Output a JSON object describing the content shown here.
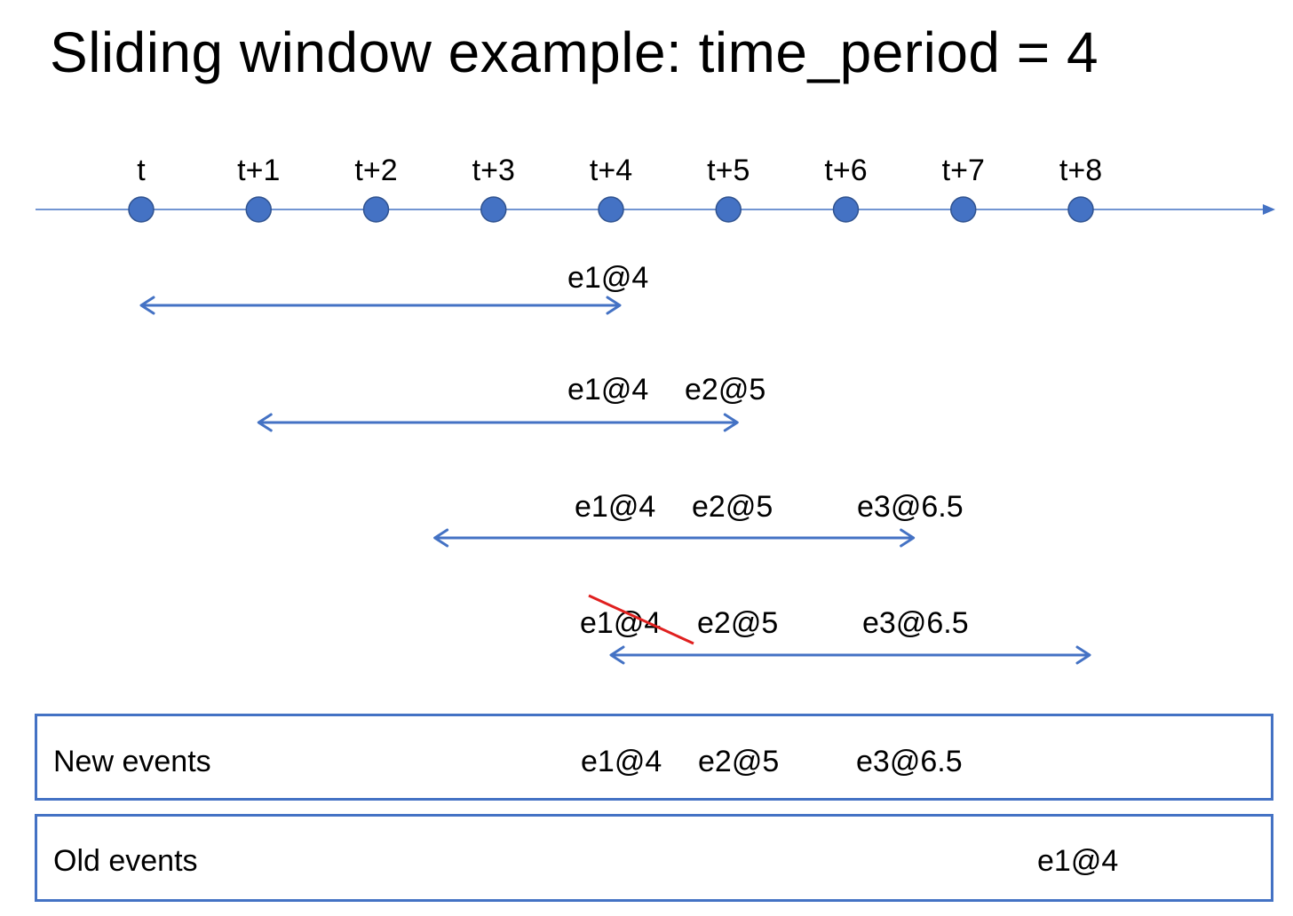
{
  "title": "Sliding window example: time_period = 4",
  "colors": {
    "axis": "#4472c4",
    "dot": "#4472c4",
    "arrow": "#4472c4",
    "strike": "#e0201f",
    "box_border": "#4472c4"
  },
  "timeline": {
    "ticks": [
      "t",
      "t+1",
      "t+2",
      "t+3",
      "t+4",
      "t+5",
      "t+6",
      "t+7",
      "t+8"
    ]
  },
  "windows": [
    {
      "start": 0,
      "end": 4,
      "events": [
        {
          "label": "e1@4",
          "at": 4,
          "struck": false
        }
      ]
    },
    {
      "start": 1,
      "end": 5,
      "events": [
        {
          "label": "e1@4",
          "at": 4,
          "struck": false
        },
        {
          "label": "e2@5",
          "at": 5,
          "struck": false
        }
      ]
    },
    {
      "start": 2.5,
      "end": 6.5,
      "events": [
        {
          "label": "e1@4",
          "at": 4,
          "struck": false
        },
        {
          "label": "e2@5",
          "at": 5,
          "struck": false
        },
        {
          "label": "e3@6.5",
          "at": 6.5,
          "struck": false
        }
      ]
    },
    {
      "start": 4,
      "end": 8,
      "events": [
        {
          "label": "e1@4",
          "at": 4,
          "struck": true
        },
        {
          "label": "e2@5",
          "at": 5,
          "struck": false
        },
        {
          "label": "e3@6.5",
          "at": 6.5,
          "struck": false
        }
      ]
    }
  ],
  "new_events": {
    "label": "New events",
    "events": [
      "e1@4",
      "e2@5",
      "e3@6.5"
    ]
  },
  "old_events": {
    "label": "Old events",
    "events": [
      "e1@4"
    ]
  }
}
